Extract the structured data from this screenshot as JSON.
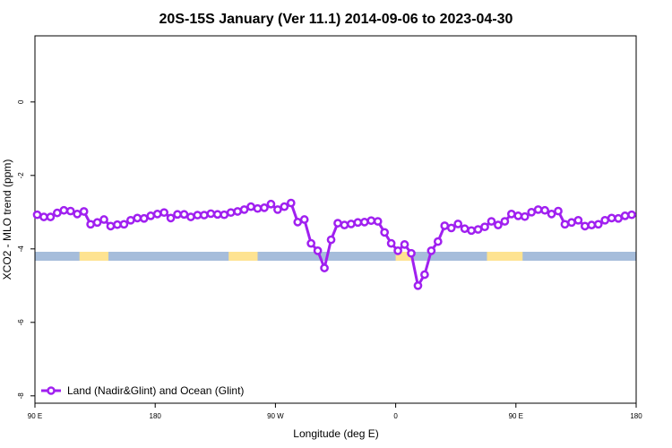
{
  "chart_data": {
    "type": "line",
    "title": "20S-15S January (Ver 11.1)   2014-09-06 to 2023-04-30",
    "xlabel": "Longitude (deg E)",
    "ylabel": "XCO2 - MLO trend (ppm)",
    "xlim": [
      -90,
      180
    ],
    "ylim": [
      -8.2,
      1.8
    ],
    "x_ticks": [
      {
        "value": -90,
        "label": "90 E"
      },
      {
        "value": -36,
        "label": "180"
      },
      {
        "value": 18,
        "label": "90 W"
      },
      {
        "value": 72,
        "label": "0"
      },
      {
        "value": 126,
        "label": "90 E"
      },
      {
        "value": 180,
        "label": "180"
      }
    ],
    "y_ticks": [
      0,
      -2,
      -4,
      -6,
      -8
    ],
    "grid": false,
    "legend_position": "bottom-left",
    "series": [
      {
        "name": "Land (Nadir&Glint) and Ocean (Glint)",
        "color": "#a020f0",
        "x": [
          -89,
          -86,
          -83,
          -80,
          -77,
          -74,
          -71,
          -68,
          -65,
          -62,
          -59,
          -56,
          -53,
          -50,
          -47,
          -44,
          -41,
          -38,
          -35,
          -32,
          -29,
          -26,
          -23,
          -20,
          -17,
          -14,
          -11,
          -8,
          -5,
          -2,
          1,
          4,
          7,
          10,
          13,
          16,
          19,
          22,
          25,
          28,
          31,
          34,
          37,
          40,
          43,
          46,
          49,
          52,
          55,
          58,
          61,
          64,
          67,
          70,
          73,
          76,
          79,
          82,
          85,
          88,
          91,
          94,
          97,
          100,
          103,
          106,
          109,
          112,
          115,
          118,
          121,
          124,
          127,
          130,
          133,
          136,
          139,
          142,
          145,
          148,
          151,
          154,
          157,
          160,
          163,
          166,
          169,
          172,
          175,
          178
        ],
        "y": [
          -3.07,
          -3.13,
          -3.13,
          -3.02,
          -2.95,
          -2.97,
          -3.05,
          -2.98,
          -3.33,
          -3.28,
          -3.2,
          -3.38,
          -3.34,
          -3.33,
          -3.22,
          -3.16,
          -3.17,
          -3.1,
          -3.05,
          -3.01,
          -3.16,
          -3.06,
          -3.06,
          -3.13,
          -3.08,
          -3.08,
          -3.04,
          -3.06,
          -3.07,
          -3.01,
          -2.98,
          -2.93,
          -2.85,
          -2.9,
          -2.88,
          -2.78,
          -2.93,
          -2.85,
          -2.75,
          -3.27,
          -3.2,
          -3.85,
          -4.05,
          -4.52,
          -3.75,
          -3.3,
          -3.35,
          -3.32,
          -3.28,
          -3.27,
          -3.23,
          -3.25,
          -3.55,
          -3.85,
          -4.05,
          -3.88,
          -4.12,
          -5.0,
          -4.7,
          -4.05,
          -3.8,
          -3.37,
          -3.43,
          -3.32,
          -3.45,
          -3.5,
          -3.47,
          -3.4,
          -3.25,
          -3.35,
          -3.25,
          -3.05,
          -3.1,
          -3.12,
          -3.0,
          -2.93,
          -2.95,
          -3.05,
          -2.97,
          -3.33,
          -3.28,
          -3.22,
          -3.38,
          -3.35,
          -3.33,
          -3.22,
          -3.16,
          -3.17,
          -3.1,
          -3.07
        ]
      }
    ],
    "surface_band": {
      "y": -4.2,
      "ocean_color": "#a6bddb",
      "land_color": "#fee391",
      "land_x_ranges": [
        [
          -70,
          -57
        ],
        [
          -3,
          10
        ],
        [
          72,
          80
        ],
        [
          113,
          129
        ]
      ]
    }
  }
}
